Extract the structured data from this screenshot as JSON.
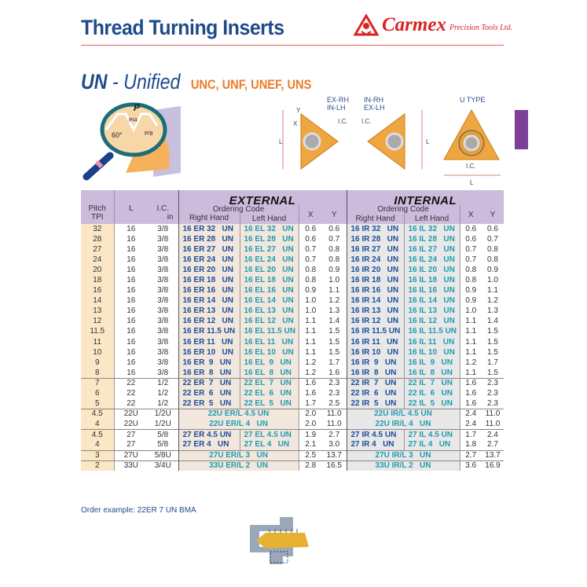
{
  "header": {
    "title": "Thread Turning Inserts",
    "brand": "Carmex",
    "brand_sub": "Precision Tools Ltd."
  },
  "section": {
    "code": "UN",
    "name": "- Unified",
    "standards": "UNC, UNF, UNEF, UNS"
  },
  "illustration": {
    "p": "P",
    "p4": "P/4",
    "p8": "P/8",
    "angle": "60°"
  },
  "diagrams": {
    "left_label_1": "EX-RH",
    "left_label_2": "IN-LH",
    "mid_label_1": "IN-RH",
    "mid_label_2": "EX-LH",
    "u_label": "U TYPE",
    "ic": "I.C.",
    "l": "L",
    "x": "X",
    "y": "Y"
  },
  "accent_colors": {
    "title": "#1f4a8a",
    "standards": "#ee7a2a",
    "right_hand": "#1c4e9a",
    "left_hand": "#1f9db0",
    "header_bg": "#cdbbdd",
    "tab": "#7b3f98"
  },
  "table": {
    "headers": {
      "pitch": "Pitch",
      "tpi": "TPI",
      "l": "L",
      "ic": "I.C.",
      "ic_unit": "in",
      "external": "EXTERNAL",
      "internal": "INTERNAL",
      "ordering_code": "Ordering Code",
      "right_hand": "Right Hand",
      "left_hand": "Left Hand",
      "x": "X",
      "y": "Y"
    },
    "rows": [
      {
        "tpi": "32",
        "l": "16",
        "ic": "3/8",
        "ext_rh": "16 ER 32   UN",
        "ext_lh": "16 EL 32   UN",
        "ext_x": "0.6",
        "ext_y": "0.6",
        "int_rh": "16 IR 32   UN",
        "int_lh": "16 IL 32   UN",
        "int_x": "0.6",
        "int_y": "0.6"
      },
      {
        "tpi": "28",
        "l": "16",
        "ic": "3/8",
        "ext_rh": "16 ER 28   UN",
        "ext_lh": "16 EL 28   UN",
        "ext_x": "0.6",
        "ext_y": "0.7",
        "int_rh": "16 IR 28   UN",
        "int_lh": "16 IL 28   UN",
        "int_x": "0.6",
        "int_y": "0.7"
      },
      {
        "tpi": "27",
        "l": "16",
        "ic": "3/8",
        "ext_rh": "16 ER 27   UN",
        "ext_lh": "16 EL 27   UN",
        "ext_x": "0.7",
        "ext_y": "0.8",
        "int_rh": "16 IR 27   UN",
        "int_lh": "16 IL 27   UN",
        "int_x": "0.7",
        "int_y": "0.8"
      },
      {
        "tpi": "24",
        "l": "16",
        "ic": "3/8",
        "ext_rh": "16 ER 24   UN",
        "ext_lh": "16 EL 24   UN",
        "ext_x": "0.7",
        "ext_y": "0.8",
        "int_rh": "16 IR 24   UN",
        "int_lh": "16 IL 24   UN",
        "int_x": "0.7",
        "int_y": "0.8"
      },
      {
        "tpi": "20",
        "l": "16",
        "ic": "3/8",
        "ext_rh": "16 ER 20   UN",
        "ext_lh": "16 EL 20   UN",
        "ext_x": "0.8",
        "ext_y": "0.9",
        "int_rh": "16 IR 20   UN",
        "int_lh": "16 IL 20   UN",
        "int_x": "0.8",
        "int_y": "0.9"
      },
      {
        "tpi": "18",
        "l": "16",
        "ic": "3/8",
        "ext_rh": "16 ER 18   UN",
        "ext_lh": "16 EL 18   UN",
        "ext_x": "0.8",
        "ext_y": "1.0",
        "int_rh": "16 IR 18   UN",
        "int_lh": "16 IL 18   UN",
        "int_x": "0.8",
        "int_y": "1.0"
      },
      {
        "tpi": "16",
        "l": "16",
        "ic": "3/8",
        "ext_rh": "16 ER 16   UN",
        "ext_lh": "16 EL 16   UN",
        "ext_x": "0.9",
        "ext_y": "1.1",
        "int_rh": "16 IR 16   UN",
        "int_lh": "16 IL 16   UN",
        "int_x": "0.9",
        "int_y": "1.1"
      },
      {
        "tpi": "14",
        "l": "16",
        "ic": "3/8",
        "ext_rh": "16 ER 14   UN",
        "ext_lh": "16 EL 14   UN",
        "ext_x": "1.0",
        "ext_y": "1.2",
        "int_rh": "16 IR 14   UN",
        "int_lh": "16 IL 14   UN",
        "int_x": "0.9",
        "int_y": "1.2"
      },
      {
        "tpi": "13",
        "l": "16",
        "ic": "3/8",
        "ext_rh": "16 ER 13   UN",
        "ext_lh": "16 EL 13   UN",
        "ext_x": "1.0",
        "ext_y": "1.3",
        "int_rh": "16 IR 13   UN",
        "int_lh": "16 IL 13   UN",
        "int_x": "1.0",
        "int_y": "1.3"
      },
      {
        "tpi": "12",
        "l": "16",
        "ic": "3/8",
        "ext_rh": "16 ER 12   UN",
        "ext_lh": "16 EL 12   UN",
        "ext_x": "1.1",
        "ext_y": "1.4",
        "int_rh": "16 IR 12   UN",
        "int_lh": "16 IL 12   UN",
        "int_x": "1.1",
        "int_y": "1.4"
      },
      {
        "tpi": "11.5",
        "l": "16",
        "ic": "3/8",
        "ext_rh": "16 ER 11.5 UN",
        "ext_lh": "16 EL 11.5 UN",
        "ext_x": "1.1",
        "ext_y": "1.5",
        "int_rh": "16 IR 11.5 UN",
        "int_lh": "16 IL 11.5 UN",
        "int_x": "1.1",
        "int_y": "1.5"
      },
      {
        "tpi": "11",
        "l": "16",
        "ic": "3/8",
        "ext_rh": "16 ER 11   UN",
        "ext_lh": "16 EL 11   UN",
        "ext_x": "1.1",
        "ext_y": "1.5",
        "int_rh": "16 IR 11   UN",
        "int_lh": "16 IL 11   UN",
        "int_x": "1.1",
        "int_y": "1.5"
      },
      {
        "tpi": "10",
        "l": "16",
        "ic": "3/8",
        "ext_rh": "16 ER 10   UN",
        "ext_lh": "16 EL 10   UN",
        "ext_x": "1.1",
        "ext_y": "1.5",
        "int_rh": "16 IR 10   UN",
        "int_lh": "16 IL 10   UN",
        "int_x": "1.1",
        "int_y": "1.5"
      },
      {
        "tpi": "9",
        "l": "16",
        "ic": "3/8",
        "ext_rh": "16 ER  9   UN",
        "ext_lh": "16 EL  9   UN",
        "ext_x": "1.2",
        "ext_y": "1.7",
        "int_rh": "16 IR  9   UN",
        "int_lh": "16 IL  9   UN",
        "int_x": "1.2",
        "int_y": "1.7"
      },
      {
        "tpi": "8",
        "l": "16",
        "ic": "3/8",
        "ext_rh": "16 ER  8   UN",
        "ext_lh": "16 EL  8   UN",
        "ext_x": "1.2",
        "ext_y": "1.6",
        "int_rh": "16 IR  8   UN",
        "int_lh": "16 IL  8   UN",
        "int_x": "1.1",
        "int_y": "1.5"
      },
      {
        "tpi": "7",
        "l": "22",
        "ic": "1/2",
        "sep": true,
        "ext_rh": "22 ER  7   UN",
        "ext_lh": "22 EL  7   UN",
        "ext_x": "1.6",
        "ext_y": "2.3",
        "int_rh": "22 IR  7   UN",
        "int_lh": "22 IL  7   UN",
        "int_x": "1.6",
        "int_y": "2.3"
      },
      {
        "tpi": "6",
        "l": "22",
        "ic": "1/2",
        "ext_rh": "22 ER  6   UN",
        "ext_lh": "22 EL  6   UN",
        "ext_x": "1.6",
        "ext_y": "2.3",
        "int_rh": "22 IR  6   UN",
        "int_lh": "22 IL  6   UN",
        "int_x": "1.6",
        "int_y": "2.3"
      },
      {
        "tpi": "5",
        "l": "22",
        "ic": "1/2",
        "ext_rh": "22 ER  5   UN",
        "ext_lh": "22 EL  5   UN",
        "ext_x": "1.7",
        "ext_y": "2.5",
        "int_rh": "22 IR  5   UN",
        "int_lh": "22 IL  5   UN",
        "int_x": "1.6",
        "int_y": "2.3"
      },
      {
        "tpi": "4.5",
        "l": "22U",
        "ic": "1/2U",
        "sep": true,
        "ext_code": "22U ER/L 4.5 UN",
        "ext_x": "2.0",
        "ext_y": "11.0",
        "int_code": "22U IR/L 4.5 UN",
        "int_x": "2.4",
        "int_y": "11.0"
      },
      {
        "tpi": "4",
        "l": "22U",
        "ic": "1/2U",
        "ext_code": "22U ER/L 4   UN",
        "ext_x": "2.0",
        "ext_y": "11.0",
        "int_code": "22U IR/L 4   UN",
        "int_x": "2.4",
        "int_y": "11.0"
      },
      {
        "tpi": "4.5",
        "l": "27",
        "ic": "5/8",
        "sep": true,
        "ext_rh": "27 ER 4.5 UN",
        "ext_lh": "27 EL 4.5 UN",
        "ext_x": "1.9",
        "ext_y": "2.7",
        "int_rh": "27 IR 4.5 UN",
        "int_lh": "27 IL 4.5 UN",
        "int_x": "1.7",
        "int_y": "2.4"
      },
      {
        "tpi": "4",
        "l": "27",
        "ic": "5/8",
        "ext_rh": "27 ER 4   UN",
        "ext_lh": "27 EL 4   UN",
        "ext_x": "2.1",
        "ext_y": "3.0",
        "int_rh": "27 IR 4   UN",
        "int_lh": "27 IL 4   UN",
        "int_x": "1.8",
        "int_y": "2.7"
      },
      {
        "tpi": "3",
        "l": "27U",
        "ic": "5/8U",
        "sep": true,
        "ext_code": "27U ER/L 3   UN",
        "ext_x": "2.5",
        "ext_y": "13.7",
        "int_code": "27U IR/L 3   UN",
        "int_x": "2.7",
        "int_y": "13.7"
      },
      {
        "tpi": "2",
        "l": "33U",
        "ic": "3/4U",
        "sep": true,
        "ext_code": "33U ER/L 2   UN",
        "ext_x": "2.8",
        "ext_y": "16.5",
        "int_code": "33U IR/L 2   UN",
        "int_x": "3.6",
        "int_y": "16.9"
      }
    ]
  },
  "footer": {
    "order_example": "Order example: 22ER 7 UN BMA"
  }
}
